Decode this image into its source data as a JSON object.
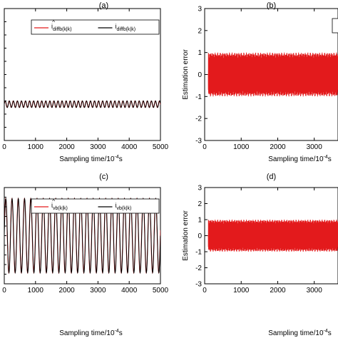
{
  "chart_data": [
    {
      "id": "a",
      "type": "line",
      "title": "(a)",
      "xlabel": "Sampling time/10",
      "xlabel_exp": "-4",
      "xlabel_unit": "s",
      "ylabel": "",
      "xlim": [
        0,
        5000
      ],
      "xticks": [
        0,
        1000,
        2000,
        3000,
        4000,
        5000
      ],
      "xticklabels": [
        "0",
        "1000",
        "2000",
        "3000",
        "4000",
        "5000"
      ],
      "ylim": [
        -1,
        1
      ],
      "legend": {
        "placement": "top-right",
        "entries": [
          {
            "hat": "^",
            "base": "i",
            "sub": "diffb(k|k)",
            "color": "#e31a1c"
          },
          {
            "hat": "",
            "base": "i",
            "sub": "diffb(k|k)",
            "color": "#000000"
          }
        ]
      },
      "series": [
        {
          "kind": "sinusoid",
          "color": "#e31a1c",
          "offset": -0.45,
          "amplitude": 0.05,
          "period": 130,
          "phase": 0.3
        },
        {
          "kind": "sinusoid",
          "color": "#000000",
          "offset": -0.45,
          "amplitude": 0.05,
          "period": 130,
          "phase": 0.0
        }
      ]
    },
    {
      "id": "b",
      "type": "line",
      "title": "(b)",
      "xlabel": "Sampling time/10",
      "xlabel_exp": "-4",
      "xlabel_unit": "s",
      "ylabel": "Estimation error",
      "xlim": [
        0,
        5000
      ],
      "xticks": [
        0,
        1000,
        2000,
        3000
      ],
      "xticklabels": [
        "0",
        "1000",
        "2000",
        "3000"
      ],
      "ylim": [
        -3,
        3
      ],
      "yticks": [
        -3,
        -2,
        -1,
        0,
        1,
        2,
        3
      ],
      "yticklabels": [
        "-3",
        "-2",
        "-1",
        "0",
        "1",
        "2",
        "3"
      ],
      "series": [
        {
          "kind": "burst",
          "color": "#e31a1c",
          "amplitude": 1.0,
          "start": 100,
          "period": 130
        }
      ]
    },
    {
      "id": "c",
      "type": "line",
      "title": "(c)",
      "xlabel": "Sampling time/10",
      "xlabel_exp": "-4",
      "xlabel_unit": "s",
      "ylabel": "",
      "xlim": [
        0,
        5000
      ],
      "xticks": [
        0,
        1000,
        2000,
        3000,
        4000,
        5000
      ],
      "xticklabels": [
        "0",
        "1000",
        "2000",
        "3000",
        "4000",
        "5000"
      ],
      "ylim": [
        -1.3,
        1.3
      ],
      "legend": {
        "placement": "top-right",
        "entries": [
          {
            "hat": "^",
            "base": "i",
            "sub": "vb(k|k)",
            "color": "#e31a1c"
          },
          {
            "hat": "",
            "base": "i",
            "sub": "vb(k|k)",
            "color": "#000000"
          }
        ]
      },
      "series": [
        {
          "kind": "sinusoid",
          "color": "#e31a1c",
          "offset": 0,
          "amplitude": 1.0,
          "period": 200,
          "phase": 0.15
        },
        {
          "kind": "sinusoid",
          "color": "#000000",
          "offset": 0,
          "amplitude": 1.0,
          "period": 200,
          "phase": 0.0
        }
      ]
    },
    {
      "id": "d",
      "type": "line",
      "title": "(d)",
      "xlabel": "Sampling time/10",
      "xlabel_exp": "-4",
      "xlabel_unit": "s",
      "ylabel": "Estimation error",
      "xlim": [
        0,
        5000
      ],
      "xticks": [
        0,
        1000,
        2000,
        3000
      ],
      "xticklabels": [
        "0",
        "1000",
        "2000",
        "3000"
      ],
      "ylim": [
        -3,
        3
      ],
      "yticks": [
        -3,
        -2,
        -1,
        0,
        1,
        2,
        3
      ],
      "yticklabels": [
        "-3",
        "-2",
        "-1",
        "0",
        "1",
        "2",
        "3"
      ],
      "series": [
        {
          "kind": "burst",
          "color": "#e31a1c",
          "amplitude": 1.0,
          "start": 100,
          "period": 130
        }
      ]
    }
  ]
}
